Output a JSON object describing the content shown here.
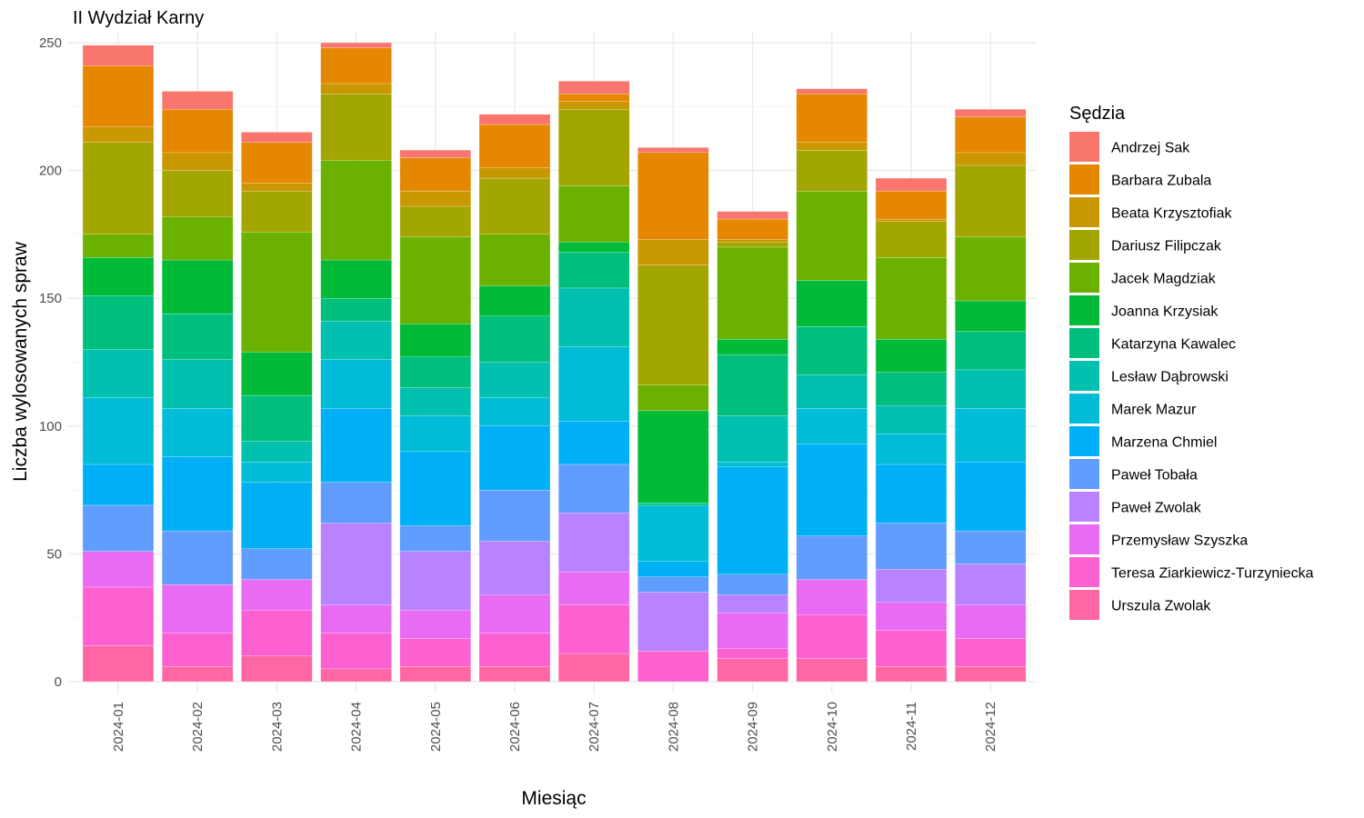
{
  "chart_data": {
    "type": "bar",
    "stacked": true,
    "title": "II Wydział Karny",
    "xlabel": "Miesiąc",
    "ylabel": "Liczba wylosowanych spraw",
    "ylim": [
      0,
      250
    ],
    "yticks": [
      0,
      50,
      100,
      150,
      200,
      250
    ],
    "grid": true,
    "legend_title": "Sędzia",
    "legend_position": "right",
    "categories": [
      "2024-01",
      "2024-02",
      "2024-03",
      "2024-04",
      "2024-05",
      "2024-06",
      "2024-07",
      "2024-08",
      "2024-09",
      "2024-10",
      "2024-11",
      "2024-12"
    ],
    "series": [
      {
        "name": "Andrzej Sak",
        "color": "#F8766D",
        "values": [
          8,
          7,
          4,
          2,
          3,
          4,
          5,
          2,
          3,
          2,
          5,
          3
        ]
      },
      {
        "name": "Barbara Zubala",
        "color": "#E58700",
        "values": [
          24,
          17,
          16,
          14,
          13,
          17,
          3,
          34,
          8,
          19,
          11,
          14
        ]
      },
      {
        "name": "Beata Krzysztofiak",
        "color": "#C99800",
        "values": [
          6,
          7,
          3,
          4,
          6,
          4,
          3,
          10,
          1,
          3,
          1,
          5
        ]
      },
      {
        "name": "Dariusz Filipczak",
        "color": "#A3A500",
        "values": [
          36,
          18,
          16,
          26,
          12,
          22,
          30,
          47,
          2,
          16,
          14,
          28
        ]
      },
      {
        "name": "Jacek Magdziak",
        "color": "#6BB100",
        "values": [
          9,
          17,
          47,
          39,
          34,
          20,
          22,
          10,
          36,
          35,
          32,
          25
        ]
      },
      {
        "name": "Joanna Krzysiak",
        "color": "#00BA38",
        "values": [
          15,
          21,
          17,
          15,
          13,
          12,
          4,
          36,
          6,
          18,
          13,
          12
        ]
      },
      {
        "name": "Katarzyna Kawalec",
        "color": "#00BF7D",
        "values": [
          21,
          18,
          18,
          9,
          12,
          18,
          14,
          1,
          24,
          19,
          13,
          15
        ]
      },
      {
        "name": "Lesław Dąbrowski",
        "color": "#00C0AF",
        "values": [
          19,
          19,
          8,
          15,
          11,
          14,
          23,
          0,
          18,
          13,
          11,
          15
        ]
      },
      {
        "name": "Marek Mazur",
        "color": "#00BCD8",
        "values": [
          26,
          19,
          8,
          19,
          14,
          11,
          29,
          22,
          2,
          14,
          12,
          21
        ]
      },
      {
        "name": "Marzena Chmiel",
        "color": "#00B0F6",
        "values": [
          16,
          29,
          26,
          29,
          29,
          25,
          17,
          6,
          42,
          36,
          23,
          27
        ]
      },
      {
        "name": "Paweł Tobała",
        "color": "#619CFF",
        "values": [
          18,
          21,
          12,
          16,
          10,
          20,
          19,
          6,
          8,
          17,
          18,
          13
        ]
      },
      {
        "name": "Paweł Zwolak",
        "color": "#B983FF",
        "values": [
          0,
          0,
          0,
          32,
          23,
          21,
          23,
          23,
          7,
          0,
          13,
          16
        ]
      },
      {
        "name": "Przemysław Szyszka",
        "color": "#E76BF3",
        "values": [
          14,
          19,
          12,
          11,
          11,
          15,
          13,
          0,
          14,
          14,
          11,
          13
        ]
      },
      {
        "name": "Teresa Ziarkiewicz-Turzyniecka",
        "color": "#FD61D1",
        "values": [
          23,
          13,
          18,
          14,
          11,
          13,
          19,
          12,
          4,
          17,
          14,
          11
        ]
      },
      {
        "name": "Urszula Zwolak",
        "color": "#FF67A4",
        "values": [
          14,
          6,
          10,
          5,
          6,
          6,
          11,
          0,
          9,
          9,
          6,
          6
        ]
      }
    ]
  }
}
